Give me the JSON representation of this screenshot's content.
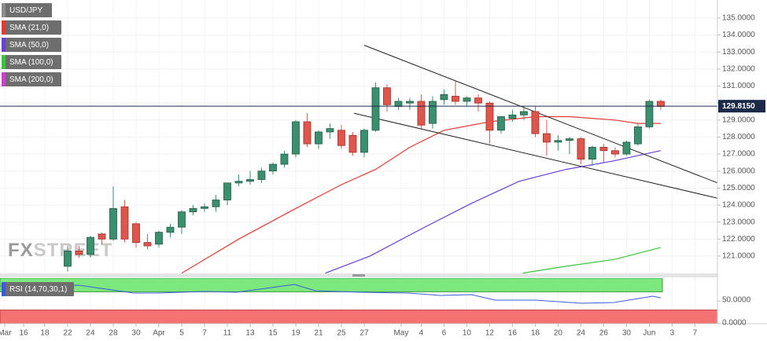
{
  "chart_data": {
    "type": "candlestick",
    "watermark": [
      "FX",
      "STREET"
    ],
    "series": [
      {
        "name": "USD/JPY",
        "color": "#8c8c8c",
        "up_color": "#3a8f6e",
        "down_color": "#e0564c",
        "x": [
          0,
          1,
          2,
          3,
          4,
          5,
          6,
          7,
          8,
          9,
          10,
          11,
          12,
          13,
          14,
          15,
          16,
          17,
          18,
          19,
          20,
          21,
          22,
          23,
          24,
          25,
          26,
          27,
          28,
          29,
          30,
          31,
          32,
          33,
          34,
          35,
          36,
          37,
          38,
          39,
          40,
          41,
          42,
          43,
          44,
          45,
          46,
          47,
          48,
          49,
          50,
          51,
          52
        ],
        "open": [
          120.4,
          121.3,
          121.1,
          122.3,
          122.0,
          123.9,
          122.9,
          121.8,
          121.7,
          122.4,
          122.7,
          123.6,
          123.8,
          123.9,
          124.3,
          125.3,
          125.4,
          125.5,
          126.0,
          126.4,
          127.0,
          128.9,
          127.6,
          128.3,
          128.4,
          128.1,
          127.1,
          128.4,
          130.9,
          129.8,
          130.0,
          130.1,
          128.8,
          130.2,
          130.4,
          130.1,
          130.3,
          130.0,
          128.4,
          129.1,
          129.3,
          129.5,
          128.2,
          127.7,
          127.8,
          127.9,
          126.7,
          127.4,
          127.2,
          127.0,
          127.6,
          128.6,
          130.1
        ],
        "high": [
          121.6,
          121.6,
          122.2,
          122.4,
          125.1,
          124.3,
          123.0,
          122.3,
          122.5,
          122.9,
          123.7,
          124.0,
          124.1,
          124.6,
          125.3,
          125.8,
          126.0,
          126.2,
          126.5,
          127.2,
          129.0,
          129.4,
          128.4,
          128.8,
          128.7,
          128.3,
          128.5,
          131.2,
          131.1,
          130.3,
          130.3,
          130.5,
          130.4,
          130.8,
          131.3,
          130.4,
          130.5,
          130.1,
          129.2,
          129.6,
          129.8,
          129.8,
          129.0,
          128.1,
          128.0,
          128.0,
          127.5,
          127.6,
          127.4,
          127.8,
          128.8,
          130.2,
          130.2
        ],
        "low": [
          120.1,
          120.9,
          120.9,
          121.7,
          121.9,
          121.8,
          121.5,
          121.4,
          121.5,
          122.1,
          122.3,
          123.4,
          123.6,
          123.6,
          124.0,
          125.1,
          125.2,
          125.3,
          125.8,
          126.2,
          126.8,
          127.4,
          127.3,
          127.9,
          127.3,
          126.9,
          126.8,
          128.3,
          129.5,
          129.6,
          129.6,
          128.5,
          128.5,
          129.9,
          129.9,
          129.8,
          129.5,
          127.6,
          128.2,
          128.9,
          129.0,
          128.0,
          126.9,
          127.2,
          127.0,
          126.4,
          126.3,
          126.5,
          126.8,
          126.9,
          127.5,
          128.5,
          129.6
        ],
        "close": [
          121.3,
          121.1,
          122.1,
          122.0,
          123.8,
          122.0,
          121.8,
          121.6,
          122.4,
          122.7,
          123.6,
          123.8,
          123.9,
          124.3,
          125.3,
          125.4,
          125.5,
          126.0,
          126.4,
          127.0,
          128.9,
          127.6,
          128.3,
          128.5,
          127.5,
          127.1,
          128.4,
          130.9,
          129.9,
          130.1,
          130.1,
          128.7,
          130.1,
          130.5,
          130.1,
          130.3,
          130.0,
          128.4,
          129.2,
          129.3,
          129.5,
          128.2,
          127.7,
          127.8,
          127.9,
          126.7,
          127.4,
          127.2,
          127.0,
          127.7,
          128.6,
          130.1,
          129.8
        ]
      },
      {
        "name": "SMA (21,0)",
        "color": "#e53935",
        "x": [
          10,
          15,
          20,
          24,
          27,
          30,
          33,
          37,
          41,
          44,
          48,
          50,
          52
        ],
        "values": [
          120.0,
          122.0,
          123.8,
          125.2,
          126.1,
          127.4,
          128.4,
          128.9,
          129.2,
          129.2,
          129.0,
          128.8,
          128.8
        ]
      },
      {
        "name": "SMA (50,0)",
        "color": "#6a3fd6",
        "x": [
          22.6,
          26.5,
          31.3,
          35.4,
          39.6,
          43.7,
          47.9,
          52
        ],
        "values": [
          120.0,
          121.0,
          122.7,
          124.1,
          125.4,
          126.1,
          126.6,
          127.2
        ]
      },
      {
        "name": "SMA (100,0)",
        "color": "#3cc43c",
        "x": [
          39.9,
          43.7,
          47.9,
          52
        ],
        "values": [
          120.0,
          120.4,
          120.8,
          121.5
        ]
      },
      {
        "name": "SMA (200,0)",
        "color": "#d23cd2",
        "x": [],
        "values": []
      }
    ],
    "trendlines": [
      {
        "color": "#222222",
        "x": [
          26,
          57
        ],
        "values": [
          133.4,
          125.3
        ]
      },
      {
        "color": "#222222",
        "x": [
          25.1,
          57
        ],
        "values": [
          129.4,
          124.4
        ]
      }
    ],
    "last_price": {
      "value": 129.815,
      "label": "129.8150",
      "color": "#1c2a4a"
    },
    "xlim": [
      -5.93,
      56.97
    ],
    "xticks": [
      {
        "value": -5.52,
        "label": "Mar"
      },
      {
        "value": -3.86,
        "label": "16"
      },
      {
        "value": -2,
        "label": "18"
      },
      {
        "value": 0,
        "label": "22"
      },
      {
        "value": 2,
        "label": "24"
      },
      {
        "value": 4,
        "label": "28"
      },
      {
        "value": 6,
        "label": "30"
      },
      {
        "value": 8,
        "label": "Apr"
      },
      {
        "value": 10,
        "label": "5"
      },
      {
        "value": 12,
        "label": "7"
      },
      {
        "value": 14,
        "label": "11"
      },
      {
        "value": 16,
        "label": "13"
      },
      {
        "value": 18,
        "label": "15"
      },
      {
        "value": 20,
        "label": "19"
      },
      {
        "value": 22,
        "label": "21"
      },
      {
        "value": 24,
        "label": "25"
      },
      {
        "value": 26,
        "label": "27"
      },
      {
        "value": 29.24,
        "label": "May"
      },
      {
        "value": 31,
        "label": "4"
      },
      {
        "value": 33,
        "label": "6"
      },
      {
        "value": 35,
        "label": "10"
      },
      {
        "value": 37,
        "label": "12"
      },
      {
        "value": 39,
        "label": "16"
      },
      {
        "value": 41,
        "label": "18"
      },
      {
        "value": 43,
        "label": "20"
      },
      {
        "value": 45,
        "label": "24"
      },
      {
        "value": 47,
        "label": "26"
      },
      {
        "value": 49,
        "label": "30"
      },
      {
        "value": 51,
        "label": "Jun"
      },
      {
        "value": 53,
        "label": "3"
      },
      {
        "value": 55,
        "label": "7"
      }
    ],
    "ylim": [
      119.98,
      136.06
    ],
    "yticks": [
      {
        "value": 121,
        "label": "121.0000"
      },
      {
        "value": 122,
        "label": "122.0000"
      },
      {
        "value": 123,
        "label": "123.0000"
      },
      {
        "value": 124,
        "label": "124.0000"
      },
      {
        "value": 125,
        "label": "125.0000"
      },
      {
        "value": 126,
        "label": "126.0000"
      },
      {
        "value": 127,
        "label": "127.0000"
      },
      {
        "value": 128,
        "label": "128.0000"
      },
      {
        "value": 129,
        "label": "129.0000"
      },
      {
        "value": 130,
        "label": "130.0000"
      },
      {
        "value": 131,
        "label": "131.0000"
      },
      {
        "value": 132,
        "label": "132.0000"
      },
      {
        "value": 133,
        "label": "133.0000"
      },
      {
        "value": 134,
        "label": "134.0000"
      },
      {
        "value": 135,
        "label": "135.0000"
      }
    ],
    "grid": true,
    "rsi": {
      "name": "RSI (14,70,30,1)",
      "color": "#3b5bdb",
      "overbought": 70,
      "oversold": 30,
      "ylim": [
        0,
        100
      ],
      "yticks": [
        {
          "value": 50,
          "label": "50.0000"
        },
        {
          "value": 0,
          "label": "0.0000"
        }
      ],
      "x": [
        -5.9,
        1,
        5.8,
        7.9,
        12,
        14.8,
        19.9,
        21.7,
        25.8,
        29.9,
        32.7,
        35.4,
        37.5,
        41,
        45.1,
        47.9,
        51.3,
        52
      ],
      "values": [
        82.8,
        84.5,
        67.2,
        67.2,
        70.7,
        69,
        86.2,
        72.4,
        69,
        67.2,
        62.1,
        63.8,
        51.7,
        51.7,
        44.8,
        46.6,
        60.3,
        56.9
      ]
    }
  }
}
